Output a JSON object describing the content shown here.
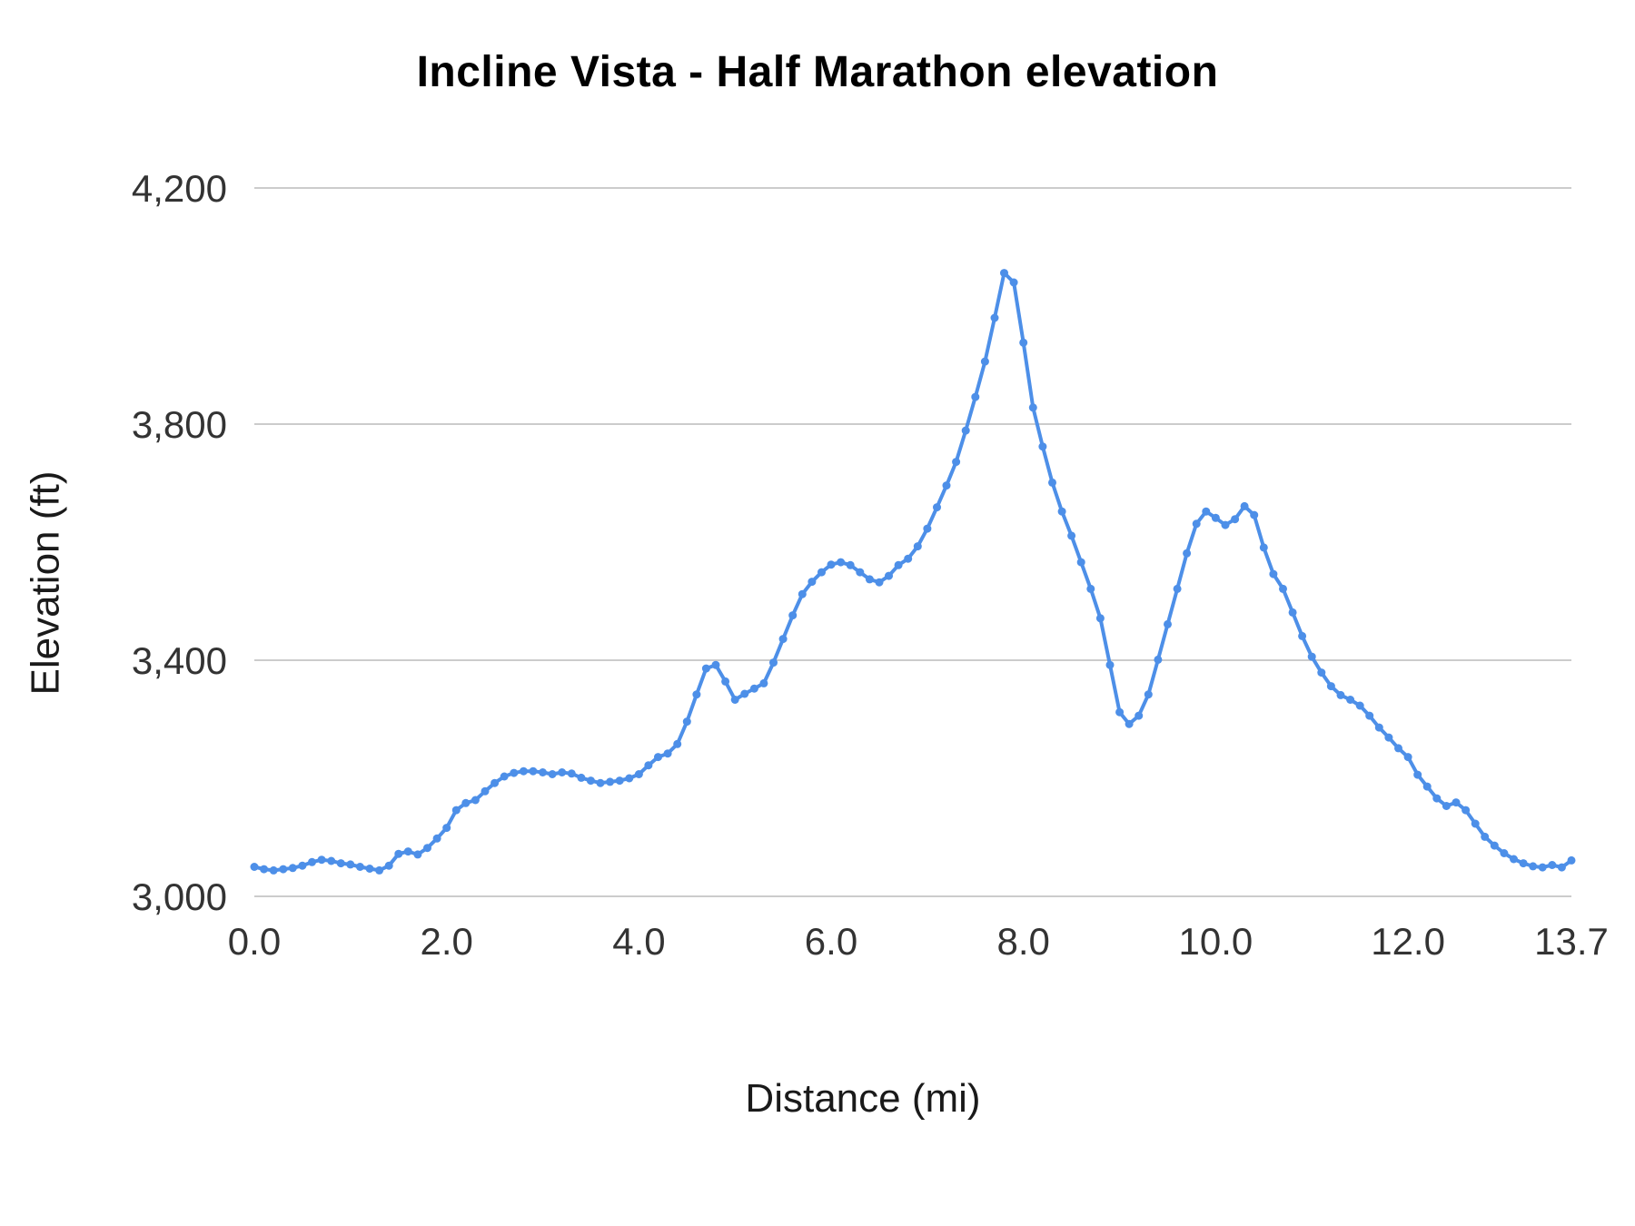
{
  "chart_data": {
    "type": "line",
    "title": "Incline Vista - Half Marathon elevation",
    "xlabel": "Distance (mi)",
    "ylabel": "Elevation (ft)",
    "xlim": [
      0,
      13.7
    ],
    "ylim": [
      3000,
      4200
    ],
    "x_ticks": [
      0,
      2,
      4,
      6,
      8,
      10,
      12,
      13.7
    ],
    "x_tick_labels": [
      "0.0",
      "2.0",
      "4.0",
      "6.0",
      "8.0",
      "10.0",
      "12.0",
      "13.7"
    ],
    "y_ticks": [
      3000,
      3400,
      3800,
      4200
    ],
    "y_tick_labels": [
      "3,000",
      "3,400",
      "3,800",
      "4,200"
    ],
    "line_color": "#4d8fe8",
    "grid_color": "#cccccc",
    "tick_text_color": "#333333",
    "marker": "circle",
    "legend": "none",
    "grid": "horizontal",
    "x": [
      0.0,
      0.1,
      0.2,
      0.3,
      0.4,
      0.5,
      0.6,
      0.7,
      0.8,
      0.9,
      1.0,
      1.1,
      1.2,
      1.3,
      1.4,
      1.5,
      1.6,
      1.7,
      1.8,
      1.9,
      2.0,
      2.1,
      2.2,
      2.3,
      2.4,
      2.5,
      2.6,
      2.7,
      2.8,
      2.9,
      3.0,
      3.1,
      3.2,
      3.3,
      3.4,
      3.5,
      3.6,
      3.7,
      3.8,
      3.9,
      4.0,
      4.1,
      4.2,
      4.3,
      4.4,
      4.5,
      4.6,
      4.7,
      4.8,
      4.9,
      5.0,
      5.1,
      5.2,
      5.3,
      5.4,
      5.5,
      5.6,
      5.7,
      5.8,
      5.9,
      6.0,
      6.1,
      6.2,
      6.3,
      6.4,
      6.5,
      6.6,
      6.7,
      6.8,
      6.9,
      7.0,
      7.1,
      7.2,
      7.3,
      7.4,
      7.5,
      7.6,
      7.7,
      7.8,
      7.9,
      8.0,
      8.1,
      8.2,
      8.3,
      8.4,
      8.5,
      8.6,
      8.7,
      8.8,
      8.9,
      9.0,
      9.1,
      9.2,
      9.3,
      9.4,
      9.5,
      9.6,
      9.7,
      9.8,
      9.9,
      10.0,
      10.1,
      10.2,
      10.3,
      10.4,
      10.5,
      10.6,
      10.7,
      10.8,
      10.9,
      11.0,
      11.1,
      11.2,
      11.3,
      11.4,
      11.5,
      11.6,
      11.7,
      11.8,
      11.9,
      12.0,
      12.1,
      12.2,
      12.3,
      12.4,
      12.5,
      12.6,
      12.7,
      12.8,
      12.9,
      13.0,
      13.1,
      13.2,
      13.3,
      13.4,
      13.5,
      13.6,
      13.7
    ],
    "y": [
      3050,
      3046,
      3044,
      3046,
      3048,
      3052,
      3058,
      3062,
      3060,
      3056,
      3054,
      3050,
      3047,
      3044,
      3052,
      3072,
      3076,
      3071,
      3082,
      3098,
      3116,
      3146,
      3158,
      3163,
      3178,
      3192,
      3203,
      3209,
      3212,
      3212,
      3210,
      3207,
      3210,
      3208,
      3201,
      3196,
      3192,
      3194,
      3196,
      3200,
      3207,
      3222,
      3236,
      3242,
      3258,
      3296,
      3342,
      3386,
      3392,
      3364,
      3333,
      3343,
      3352,
      3361,
      3396,
      3436,
      3476,
      3512,
      3533,
      3549,
      3562,
      3566,
      3561,
      3549,
      3537,
      3532,
      3543,
      3561,
      3572,
      3593,
      3623,
      3659,
      3696,
      3736,
      3789,
      3846,
      3906,
      3980,
      4056,
      4040,
      3938,
      3828,
      3762,
      3701,
      3652,
      3611,
      3566,
      3521,
      3471,
      3392,
      3312,
      3292,
      3306,
      3342,
      3401,
      3461,
      3521,
      3581,
      3631,
      3652,
      3641,
      3629,
      3639,
      3661,
      3646,
      3591,
      3546,
      3521,
      3481,
      3441,
      3406,
      3379,
      3356,
      3341,
      3333,
      3323,
      3306,
      3286,
      3269,
      3251,
      3236,
      3206,
      3186,
      3166,
      3153,
      3159,
      3146,
      3123,
      3101,
      3086,
      3073,
      3063,
      3056,
      3051,
      3049,
      3053,
      3049,
      3061
    ]
  }
}
